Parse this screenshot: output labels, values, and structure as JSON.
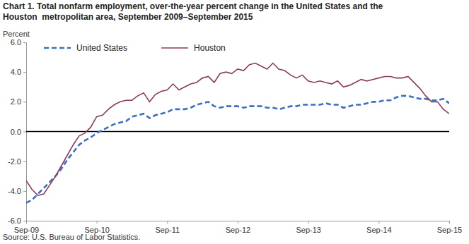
{
  "chart_data": {
    "type": "line",
    "title": "Chart 1. Total nonfarm employment, over-the-year percent change in the United States and the\nHouston  metropolitan area, September 2009–September 2015",
    "y_label": "Percent",
    "source": "Source: U.S. Bureau of Labor Statistics.",
    "categories": [
      "Sep-09",
      null,
      null,
      null,
      null,
      null,
      null,
      null,
      null,
      null,
      null,
      null,
      "Sep-10",
      null,
      null,
      null,
      null,
      null,
      null,
      null,
      null,
      null,
      null,
      null,
      "Sep-11",
      null,
      null,
      null,
      null,
      null,
      null,
      null,
      null,
      null,
      null,
      null,
      "Sep-12",
      null,
      null,
      null,
      null,
      null,
      null,
      null,
      null,
      null,
      null,
      null,
      "Sep-13",
      null,
      null,
      null,
      null,
      null,
      null,
      null,
      null,
      null,
      null,
      null,
      "Sep-14",
      null,
      null,
      null,
      null,
      null,
      null,
      null,
      null,
      null,
      null,
      null,
      "Sep-15"
    ],
    "series": [
      {
        "name": "United States",
        "color": "#3a6fc4",
        "line_style": "dashed",
        "values": [
          -4.8,
          -4.6,
          -4.2,
          -3.8,
          -3.4,
          -3.0,
          -2.5,
          -1.9,
          -1.4,
          -0.9,
          -0.6,
          -0.4,
          -0.1,
          0.1,
          0.3,
          0.5,
          0.6,
          0.7,
          1.0,
          1.1,
          1.2,
          0.9,
          1.1,
          1.2,
          1.3,
          1.5,
          1.5,
          1.5,
          1.6,
          1.8,
          1.9,
          2.0,
          1.7,
          1.6,
          1.7,
          1.7,
          1.7,
          1.6,
          1.7,
          1.7,
          1.7,
          1.6,
          1.6,
          1.5,
          1.6,
          1.7,
          1.7,
          1.8,
          1.8,
          1.8,
          1.8,
          1.9,
          1.8,
          1.8,
          1.6,
          1.7,
          1.8,
          1.8,
          1.9,
          2.0,
          2.0,
          2.1,
          2.1,
          2.3,
          2.4,
          2.4,
          2.3,
          2.2,
          2.2,
          2.1,
          2.1,
          2.2,
          1.9
        ]
      },
      {
        "name": "Houston",
        "color": "#8c3b5e",
        "line_style": "solid",
        "values": [
          -3.3,
          -3.9,
          -4.3,
          -4.2,
          -3.6,
          -3.0,
          -2.3,
          -1.6,
          -0.9,
          -0.3,
          -0.1,
          0.3,
          1.0,
          1.1,
          1.5,
          1.8,
          2.0,
          2.1,
          2.1,
          2.4,
          2.6,
          2.0,
          2.5,
          2.7,
          2.8,
          3.2,
          2.8,
          3.0,
          3.2,
          3.3,
          3.6,
          3.7,
          3.3,
          3.9,
          4.0,
          3.9,
          4.2,
          4.1,
          4.5,
          4.6,
          4.4,
          4.2,
          4.6,
          4.2,
          4.1,
          3.8,
          3.6,
          3.8,
          3.4,
          3.3,
          3.4,
          3.3,
          3.2,
          3.4,
          3.0,
          3.1,
          3.3,
          3.5,
          3.4,
          3.5,
          3.6,
          3.7,
          3.7,
          3.6,
          3.6,
          3.7,
          3.3,
          2.9,
          2.4,
          2.0,
          2.0,
          1.5,
          1.2
        ]
      }
    ],
    "ylim": [
      -6,
      6
    ],
    "yticks": [
      {
        "value": -6,
        "label": "-6.0"
      },
      {
        "value": -4,
        "label": "-4.0"
      },
      {
        "value": -2,
        "label": "-2.0"
      },
      {
        "value": 0,
        "label": "0.0"
      },
      {
        "value": 2,
        "label": "2.0"
      },
      {
        "value": 4,
        "label": "4.0"
      },
      {
        "value": 6,
        "label": "6.0"
      }
    ],
    "grid": false,
    "legend": "top-left"
  }
}
